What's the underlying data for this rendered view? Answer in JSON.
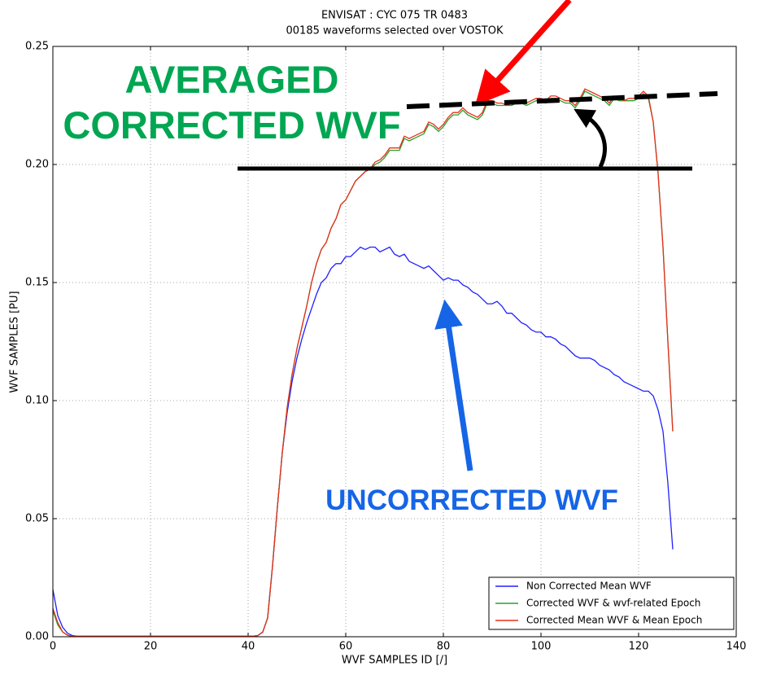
{
  "chart_data": {
    "type": "line",
    "title": [
      "ENVISAT : CYC 075 TR 0483",
      "00185 waveforms selected over VOSTOK"
    ],
    "x_label": "WVF SAMPLES ID [/]",
    "y_label": "WVF SAMPLES [PU]",
    "xlim": [
      0,
      140
    ],
    "xticks": [
      0,
      20,
      40,
      60,
      80,
      100,
      120,
      140
    ],
    "ylim": [
      0,
      0.25
    ],
    "yticks": [
      {
        "value": 0,
        "label": "0.00"
      },
      0.05,
      {
        "value": 0.1,
        "label": "0.10"
      },
      0.15,
      {
        "value": 0.2,
        "label": "0.20"
      },
      0.25
    ],
    "grid": true,
    "legend": "lower right",
    "annotations": [
      {
        "text": "AVERAGED",
        "color": "#00a651"
      },
      {
        "text": "CORRECTED WVF",
        "color": "#00a651"
      },
      {
        "text": "UNCORRECTED WVF",
        "color": "#1565e6"
      }
    ],
    "x": [
      0,
      1,
      2,
      3,
      4,
      5,
      6,
      7,
      8,
      9,
      10,
      11,
      12,
      13,
      14,
      15,
      16,
      17,
      18,
      19,
      20,
      21,
      22,
      23,
      24,
      25,
      26,
      27,
      28,
      29,
      30,
      31,
      32,
      33,
      34,
      35,
      36,
      37,
      38,
      39,
      40,
      41,
      42,
      43,
      44,
      45,
      46,
      47,
      48,
      49,
      50,
      51,
      52,
      53,
      54,
      55,
      56,
      57,
      58,
      59,
      60,
      61,
      62,
      63,
      64,
      65,
      66,
      67,
      68,
      69,
      70,
      71,
      72,
      73,
      74,
      75,
      76,
      77,
      78,
      79,
      80,
      81,
      82,
      83,
      84,
      85,
      86,
      87,
      88,
      89,
      90,
      91,
      92,
      93,
      94,
      95,
      96,
      97,
      98,
      99,
      100,
      101,
      102,
      103,
      104,
      105,
      106,
      107,
      108,
      109,
      110,
      111,
      112,
      113,
      114,
      115,
      116,
      117,
      118,
      119,
      120,
      121,
      122,
      123,
      124,
      125,
      126,
      127
    ],
    "series": [
      {
        "name": "Non Corrected Mean WVF",
        "color": "#2020ff",
        "values": [
          0.02,
          0.009,
          0.004,
          0.0015,
          0.0005,
          0.0002,
          0.0002,
          0.0002,
          0.0002,
          0.0002,
          0.0002,
          0.0002,
          0.0002,
          0.0002,
          0.0002,
          0.0002,
          0.0002,
          0.0002,
          0.0002,
          0.0002,
          0.0002,
          0.0002,
          0.0002,
          0.0002,
          0.0002,
          0.0002,
          0.0002,
          0.0002,
          0.0002,
          0.0002,
          0.0002,
          0.0002,
          0.0002,
          0.0002,
          0.0002,
          0.0002,
          0.0002,
          0.0002,
          0.0002,
          0.0002,
          0.0002,
          0.0002,
          0.0005,
          0.002,
          0.008,
          0.03,
          0.055,
          0.078,
          0.095,
          0.108,
          0.118,
          0.126,
          0.133,
          0.139,
          0.145,
          0.15,
          0.152,
          0.156,
          0.158,
          0.158,
          0.161,
          0.161,
          0.163,
          0.165,
          0.164,
          0.165,
          0.165,
          0.163,
          0.164,
          0.165,
          0.162,
          0.161,
          0.162,
          0.159,
          0.158,
          0.157,
          0.156,
          0.157,
          0.155,
          0.153,
          0.151,
          0.152,
          0.151,
          0.151,
          0.149,
          0.148,
          0.146,
          0.145,
          0.143,
          0.141,
          0.141,
          0.142,
          0.14,
          0.137,
          0.137,
          0.135,
          0.133,
          0.132,
          0.13,
          0.129,
          0.129,
          0.127,
          0.127,
          0.126,
          0.124,
          0.123,
          0.121,
          0.119,
          0.118,
          0.118,
          0.118,
          0.117,
          0.115,
          0.114,
          0.113,
          0.111,
          0.11,
          0.108,
          0.107,
          0.106,
          0.105,
          0.104,
          0.104,
          0.102,
          0.096,
          0.087,
          0.065,
          0.037
        ]
      },
      {
        "name": "Corrected WVF & wvf-related Epoch",
        "color": "#2ca02c",
        "values": [
          0.011,
          0.005,
          0.002,
          0.0006,
          0.0002,
          0.0002,
          0.0002,
          0.0002,
          0.0002,
          0.0002,
          0.0002,
          0.0002,
          0.0002,
          0.0002,
          0.0002,
          0.0002,
          0.0002,
          0.0002,
          0.0002,
          0.0002,
          0.0002,
          0.0002,
          0.0002,
          0.0002,
          0.0002,
          0.0002,
          0.0002,
          0.0002,
          0.0002,
          0.0002,
          0.0002,
          0.0002,
          0.0002,
          0.0002,
          0.0002,
          0.0002,
          0.0002,
          0.0002,
          0.0002,
          0.0002,
          0.0002,
          0.0002,
          0.0005,
          0.002,
          0.008,
          0.03,
          0.055,
          0.078,
          0.097,
          0.111,
          0.122,
          0.131,
          0.14,
          0.15,
          0.158,
          0.164,
          0.167,
          0.173,
          0.177,
          0.183,
          0.185,
          0.189,
          0.193,
          0.195,
          0.197,
          0.198,
          0.2,
          0.201,
          0.203,
          0.206,
          0.206,
          0.206,
          0.211,
          0.21,
          0.211,
          0.212,
          0.213,
          0.217,
          0.216,
          0.214,
          0.216,
          0.219,
          0.221,
          0.221,
          0.223,
          0.221,
          0.22,
          0.219,
          0.221,
          0.226,
          0.226,
          0.225,
          0.225,
          0.225,
          0.225,
          0.226,
          0.226,
          0.225,
          0.226,
          0.227,
          0.227,
          0.226,
          0.228,
          0.228,
          0.227,
          0.226,
          0.226,
          0.224,
          0.227,
          0.231,
          0.23,
          0.229,
          0.228,
          0.227,
          0.225,
          0.228,
          0.227,
          0.227,
          0.227,
          0.227,
          0.228,
          0.23,
          0.228,
          0.218,
          0.196,
          0.165,
          0.125,
          0.087
        ]
      },
      {
        "name": "Corrected Mean WVF & Mean Epoch",
        "color": "#e8301c",
        "values": [
          0.012,
          0.006,
          0.002,
          0.0007,
          0.0002,
          0.0002,
          0.0002,
          0.0002,
          0.0002,
          0.0002,
          0.0002,
          0.0002,
          0.0002,
          0.0002,
          0.0002,
          0.0002,
          0.0002,
          0.0002,
          0.0002,
          0.0002,
          0.0002,
          0.0002,
          0.0002,
          0.0002,
          0.0002,
          0.0002,
          0.0002,
          0.0002,
          0.0002,
          0.0002,
          0.0002,
          0.0002,
          0.0002,
          0.0002,
          0.0002,
          0.0002,
          0.0002,
          0.0002,
          0.0002,
          0.0002,
          0.0002,
          0.0002,
          0.0005,
          0.002,
          0.008,
          0.03,
          0.055,
          0.078,
          0.097,
          0.111,
          0.122,
          0.131,
          0.14,
          0.15,
          0.158,
          0.164,
          0.167,
          0.173,
          0.177,
          0.183,
          0.185,
          0.189,
          0.193,
          0.195,
          0.197,
          0.198,
          0.201,
          0.202,
          0.204,
          0.207,
          0.207,
          0.207,
          0.212,
          0.211,
          0.212,
          0.213,
          0.214,
          0.218,
          0.217,
          0.215,
          0.217,
          0.22,
          0.222,
          0.222,
          0.224,
          0.222,
          0.221,
          0.22,
          0.222,
          0.227,
          0.227,
          0.226,
          0.226,
          0.225,
          0.226,
          0.227,
          0.227,
          0.226,
          0.227,
          0.228,
          0.228,
          0.227,
          0.229,
          0.229,
          0.228,
          0.227,
          0.227,
          0.225,
          0.228,
          0.232,
          0.231,
          0.23,
          0.229,
          0.228,
          0.226,
          0.229,
          0.228,
          0.227,
          0.228,
          0.228,
          0.229,
          0.231,
          0.229,
          0.218,
          0.196,
          0.165,
          0.125,
          0.087
        ]
      }
    ]
  }
}
